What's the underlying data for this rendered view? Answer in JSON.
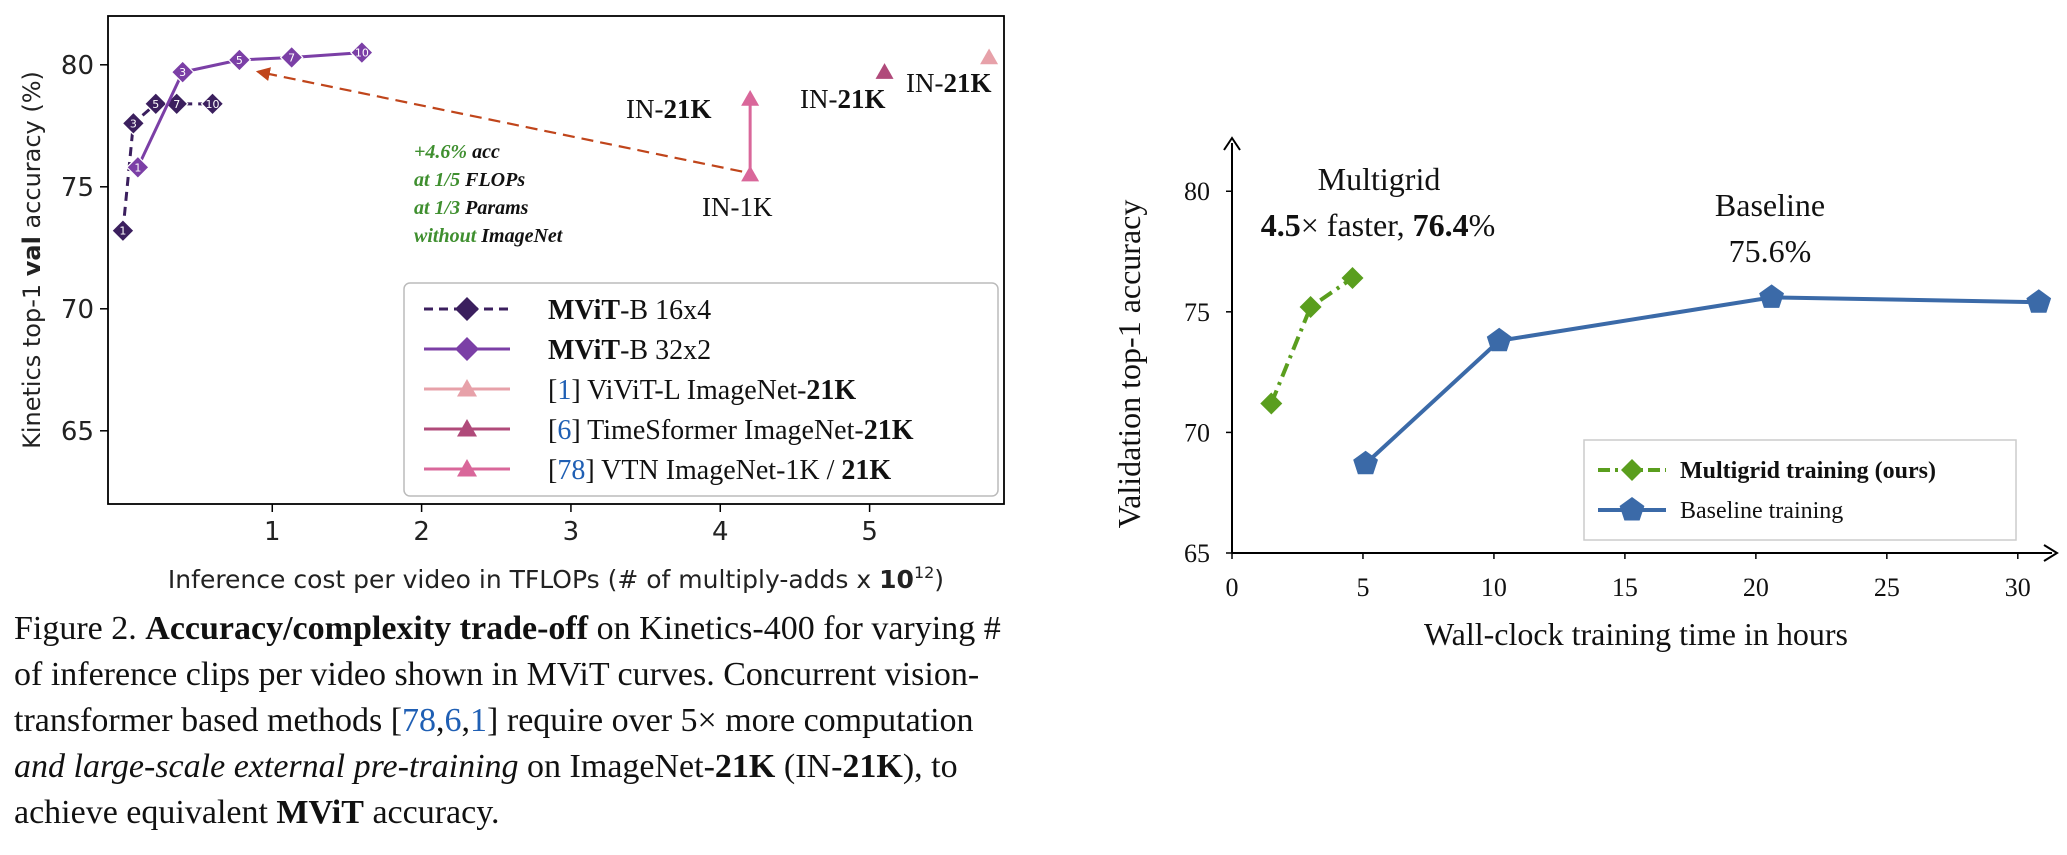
{
  "figure_caption": {
    "label": "Figure 2.",
    "bold_phrase": "Accuracy/complexity trade-off",
    "text1": "on Kinetics-400 for varying # of inference clips per video shown in MViT curves. Concurrent vision-transformer based methods [",
    "cite_78": "78",
    "cite_6": "6",
    "cite_1": "1",
    "text2": "] require over 5× more computation ",
    "italic_phrase": "and large-scale external pre-training",
    "text3": " on ImageNet-",
    "bold_21k_a": "21K",
    "text4": " (IN-",
    "bold_21k_b": "21K",
    "text5": "), to achieve equivalent ",
    "bold_mvit": "MViT",
    "text6": " accuracy."
  },
  "left_chart": {
    "ylabel_pre": "Kinetics top-1 ",
    "ylabel_bold": "val",
    "ylabel_post": " accuracy (%)",
    "xlabel_pre": "Inference cost per video in TFLOPs (# of multiply-adds x ",
    "xlabel_bold": "10",
    "xlabel_sup": "12",
    "xlabel_post": ")",
    "annotation": {
      "l1a": "+4.6%",
      "l1b": " acc",
      "l2a": "at 1/5 ",
      "l2b": "FLOPs",
      "l3a": "at 1/3 ",
      "l3b": "Params",
      "l4a": "without ",
      "l4b": "ImageNet"
    },
    "point_labels": {
      "vtn_21k_pre": "IN-",
      "vtn_21k_bold": "21K",
      "vtn_1k": "IN-1K",
      "tsf_pre": "IN-",
      "tsf_bold": "21K",
      "vivit_pre": "IN-",
      "vivit_bold": "21K"
    },
    "legend": [
      {
        "pre": "",
        "bold": "MViT",
        "post": "-B 16x4",
        "cite": ""
      },
      {
        "pre": "",
        "bold": "MViT",
        "post": "-B 32x2",
        "cite": ""
      },
      {
        "pre": "[",
        "cite": "1",
        "post": "] ViViT-L ImageNet-",
        "bold": "21K"
      },
      {
        "pre": "[",
        "cite": "6",
        "post": "] TimeSformer ImageNet-",
        "bold": "21K"
      },
      {
        "pre": "[",
        "cite": "78",
        "post": "] VTN ImageNet-1K / ",
        "bold": "21K"
      }
    ],
    "colors": {
      "mvit16": "#3b1f5e",
      "mvit32": "#7b3fa6",
      "vivit": "#e7a1a9",
      "timesformer": "#b04a7a",
      "vtn": "#d9679a",
      "arrow": "#c0451b",
      "annotation": "#3f8f2f"
    }
  },
  "chart_data": [
    {
      "type": "line",
      "title": "",
      "xlabel": "Inference cost per video in TFLOPs (# of multiply-adds x 10^12)",
      "ylabel": "Kinetics top-1 val accuracy (%)",
      "xlim": [
        -0.1,
        5.9
      ],
      "ylim": [
        62,
        82
      ],
      "xticks": [
        "1",
        "2",
        "3",
        "4",
        "5"
      ],
      "yticks": [
        "65",
        "70",
        "75",
        "80"
      ],
      "legend_position": "lower-right",
      "grid": false,
      "series": [
        {
          "name": "MViT-B 16x4",
          "style": "dashed",
          "marker": "diamond",
          "x": [
            0.0,
            0.07,
            0.22,
            0.36,
            0.6
          ],
          "y": [
            73.2,
            77.6,
            78.4,
            78.4,
            78.4
          ],
          "point_labels": [
            "1",
            "3",
            "5",
            "7",
            "10"
          ]
        },
        {
          "name": "MViT-B 32x2",
          "style": "solid",
          "marker": "diamond",
          "x": [
            0.1,
            0.4,
            0.78,
            1.13,
            1.6
          ],
          "y": [
            75.8,
            79.7,
            80.2,
            80.3,
            80.5
          ],
          "point_labels": [
            "1",
            "3",
            "5",
            "7",
            "10"
          ]
        },
        {
          "name": "[1] ViViT-L ImageNet-21K",
          "marker": "triangle",
          "x": [
            5.8
          ],
          "y": [
            80.3
          ],
          "point_labels": [
            "IN-21K"
          ]
        },
        {
          "name": "[6] TimeSformer ImageNet-21K",
          "marker": "triangle",
          "x": [
            5.1
          ],
          "y": [
            79.7
          ],
          "point_labels": [
            "IN-21K"
          ]
        },
        {
          "name": "[78] VTN ImageNet-1K / 21K",
          "marker": "triangle",
          "x": [
            4.2,
            4.2
          ],
          "y": [
            75.5,
            78.6
          ],
          "point_labels": [
            "IN-1K",
            "IN-21K"
          ]
        }
      ],
      "annotations": [
        {
          "text": "+4.6% acc at 1/5 FLOPs at 1/3 Params without ImageNet",
          "arrow_from": [
            4.2,
            75.5
          ],
          "arrow_to": [
            0.85,
            79.8
          ]
        }
      ]
    },
    {
      "type": "line",
      "title": "",
      "xlabel": "Wall-clock training time in hours",
      "ylabel": "Validation top-1 accuracy",
      "xlim": [
        0,
        31
      ],
      "ylim": [
        65,
        82
      ],
      "xticks": [
        "0",
        "5",
        "10",
        "15",
        "20",
        "25",
        "30"
      ],
      "yticks": [
        "65",
        "70",
        "75",
        "80"
      ],
      "legend_position": "lower-right",
      "grid": false,
      "series": [
        {
          "name": "Multigrid training (ours)",
          "color": "#5a9e1e",
          "style": "dashdot",
          "marker": "diamond",
          "x": [
            1.5,
            3.0,
            4.6
          ],
          "y": [
            71.2,
            75.2,
            76.4
          ]
        },
        {
          "name": "Baseline training",
          "color": "#3b6aa8",
          "style": "solid",
          "marker": "pentagon",
          "x": [
            5.1,
            10.2,
            20.6,
            30.8
          ],
          "y": [
            68.7,
            73.8,
            75.6,
            75.4
          ]
        }
      ],
      "annotations": [
        {
          "text": "Multigrid 4.5× faster, 76.4%"
        },
        {
          "text": "Baseline 75.6%"
        }
      ]
    }
  ],
  "right_chart": {
    "ylabel": "Validation top-1 accuracy",
    "xlabel": "Wall-clock training time in hours",
    "multigrid_title": "Multigrid",
    "multigrid_line_bold_a": "4.5",
    "multigrid_line_mid": "× faster, ",
    "multigrid_line_bold_b": "76.4",
    "multigrid_line_end": "%",
    "baseline_title": "Baseline",
    "baseline_value": "75.6%",
    "legend": [
      {
        "label": "Multigrid training (ours)"
      },
      {
        "label": "Baseline training"
      }
    ]
  }
}
